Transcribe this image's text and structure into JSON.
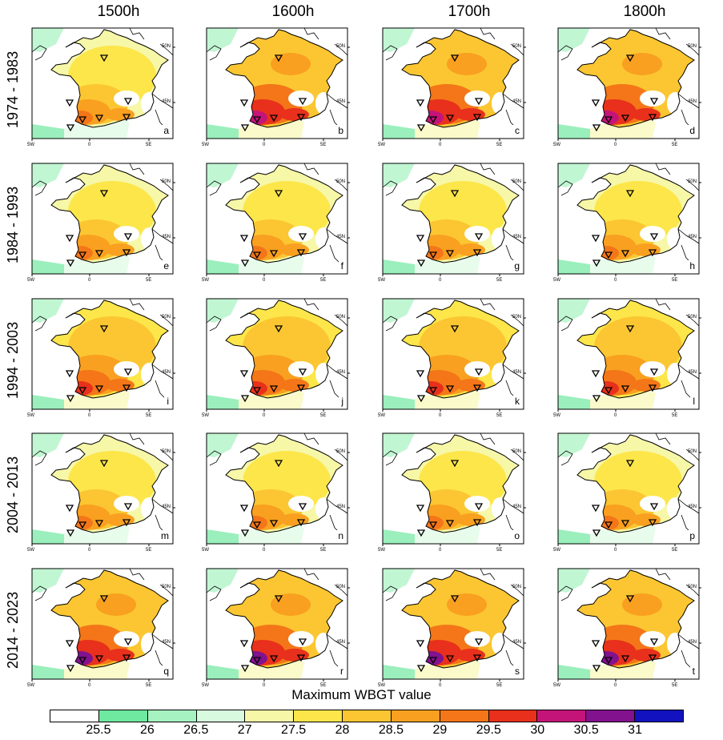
{
  "columns": [
    "1500h",
    "1600h",
    "1700h",
    "1800h"
  ],
  "rows": [
    "1974 - 1983",
    "1984 - 1993",
    "1994 - 2003",
    "2004 - 2013",
    "2014 - 2023"
  ],
  "panel_letters": [
    "a",
    "b",
    "c",
    "d",
    "e",
    "f",
    "g",
    "h",
    "i",
    "j",
    "k",
    "l",
    "m",
    "n",
    "o",
    "p",
    "q",
    "r",
    "s",
    "t"
  ],
  "axis_labels": {
    "lon_left": "5W",
    "lon_mid": "0",
    "lon_right": "5E",
    "lat_top": "50N",
    "lat_bottom": "45N"
  },
  "colorbar": {
    "title": "Maximum WBGT value",
    "tick_labels": [
      "25.5",
      "26",
      "26.5",
      "27",
      "27.5",
      "28",
      "28.5",
      "29",
      "29.5",
      "30",
      "30.5",
      "31"
    ],
    "colors": [
      "#ffffff",
      "#6fe8a0",
      "#a6f2c0",
      "#d8fadf",
      "#f7f7a8",
      "#fde64a",
      "#fbc632",
      "#f9a020",
      "#f47618",
      "#e8301c",
      "#c4147a",
      "#82128e",
      "#1212c0"
    ]
  },
  "panel_intensity": [
    [
      2,
      4,
      4,
      4
    ],
    [
      2,
      2,
      2,
      2
    ],
    [
      3,
      3,
      3,
      3
    ],
    [
      2,
      2,
      2,
      2
    ],
    [
      5,
      5,
      5,
      5
    ]
  ]
}
